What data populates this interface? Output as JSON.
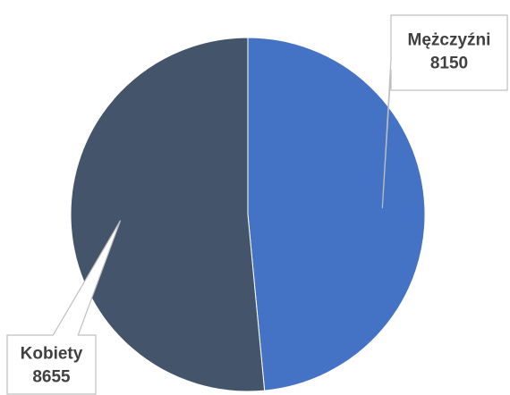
{
  "chart_data": {
    "type": "pie",
    "title": "",
    "start_angle_deg": 0,
    "direction": "clockwise",
    "legend": "none",
    "slices": [
      {
        "name": "Mężczyźni",
        "value": 8150,
        "color": "#4472C4"
      },
      {
        "name": "Kobiety",
        "value": 8655,
        "color": "#44546A"
      }
    ]
  },
  "colors": {
    "callout_fill": "#ffffff",
    "callout_border": "#BFBFBF",
    "label_text": "#404040"
  }
}
